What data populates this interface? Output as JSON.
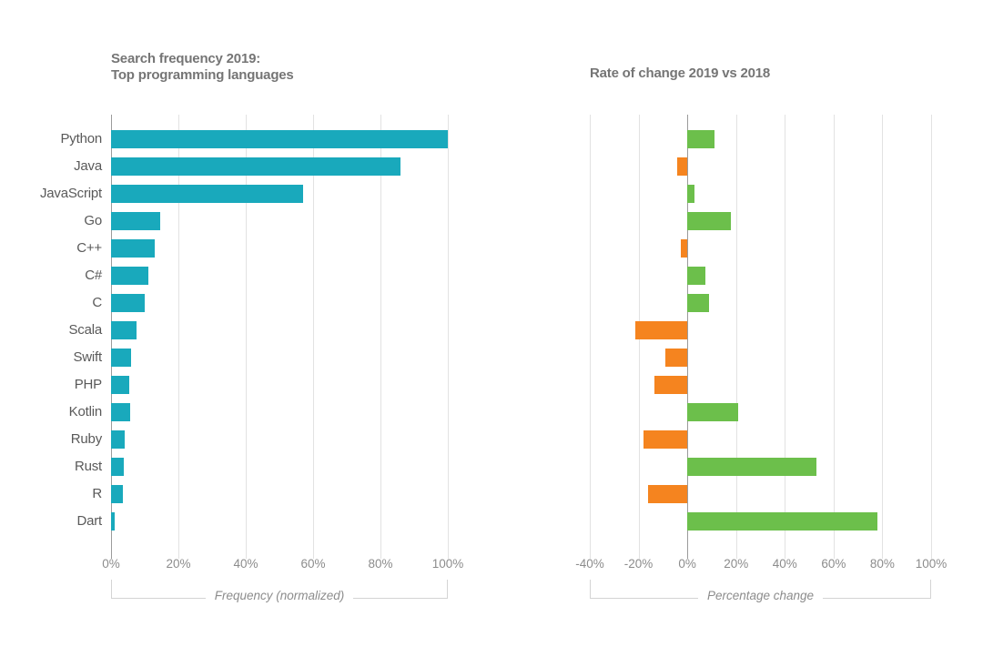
{
  "colors": {
    "frequency_bar": "#19a9bc",
    "positive_bar": "#6cbf4b",
    "negative_bar": "#f5841f",
    "gridline": "#e2e2e2",
    "zero_line": "#9b9b9b",
    "title_text": "#757575",
    "category_text": "#595959",
    "tick_text": "#8c8c8c"
  },
  "chart_data": [
    {
      "type": "bar",
      "orientation": "horizontal",
      "title": "Search frequency 2019: Top programming languages",
      "title_lines": [
        "Search frequency 2019:",
        "Top programming languages"
      ],
      "categories": [
        "Python",
        "Java",
        "JavaScript",
        "Go",
        "C++",
        "C#",
        "C",
        "Scala",
        "Swift",
        "PHP",
        "Kotlin",
        "Ruby",
        "Rust",
        "R",
        "Dart"
      ],
      "values": [
        100,
        86,
        57,
        14.5,
        13,
        11,
        10,
        7.5,
        6,
        5.5,
        5.7,
        4.1,
        3.8,
        3.5,
        1.1
      ],
      "unit": "%",
      "xlabel": "Frequency (normalized)",
      "xlim": [
        0,
        100
      ],
      "tick_values": [
        0,
        20,
        40,
        60,
        80,
        100
      ],
      "x_ticks": [
        "0%",
        "20%",
        "40%",
        "60%",
        "80%",
        "100%"
      ],
      "grid": true,
      "bar_color": "#19a9bc"
    },
    {
      "type": "bar",
      "orientation": "horizontal",
      "title": "Rate of change 2019 vs 2018",
      "title_lines": [
        "Rate of change 2019 vs 2018"
      ],
      "categories": [
        "Python",
        "Java",
        "JavaScript",
        "Go",
        "C++",
        "C#",
        "C",
        "Scala",
        "Swift",
        "PHP",
        "Kotlin",
        "Ruby",
        "Rust",
        "R",
        "Dart"
      ],
      "values": [
        11,
        -4,
        3,
        18,
        -2.5,
        7.5,
        9,
        -21.5,
        -9,
        -13.5,
        21,
        -18,
        53,
        -16,
        78
      ],
      "unit": "%",
      "xlabel": "Percentage change",
      "xlim": [
        -40,
        100
      ],
      "tick_values": [
        -40,
        -20,
        0,
        20,
        40,
        60,
        80,
        100
      ],
      "x_ticks": [
        "-40%",
        "-20%",
        "0%",
        "20%",
        "40%",
        "60%",
        "80%",
        "100%"
      ],
      "grid": true,
      "positive_color": "#6cbf4b",
      "negative_color": "#f5841f"
    }
  ]
}
